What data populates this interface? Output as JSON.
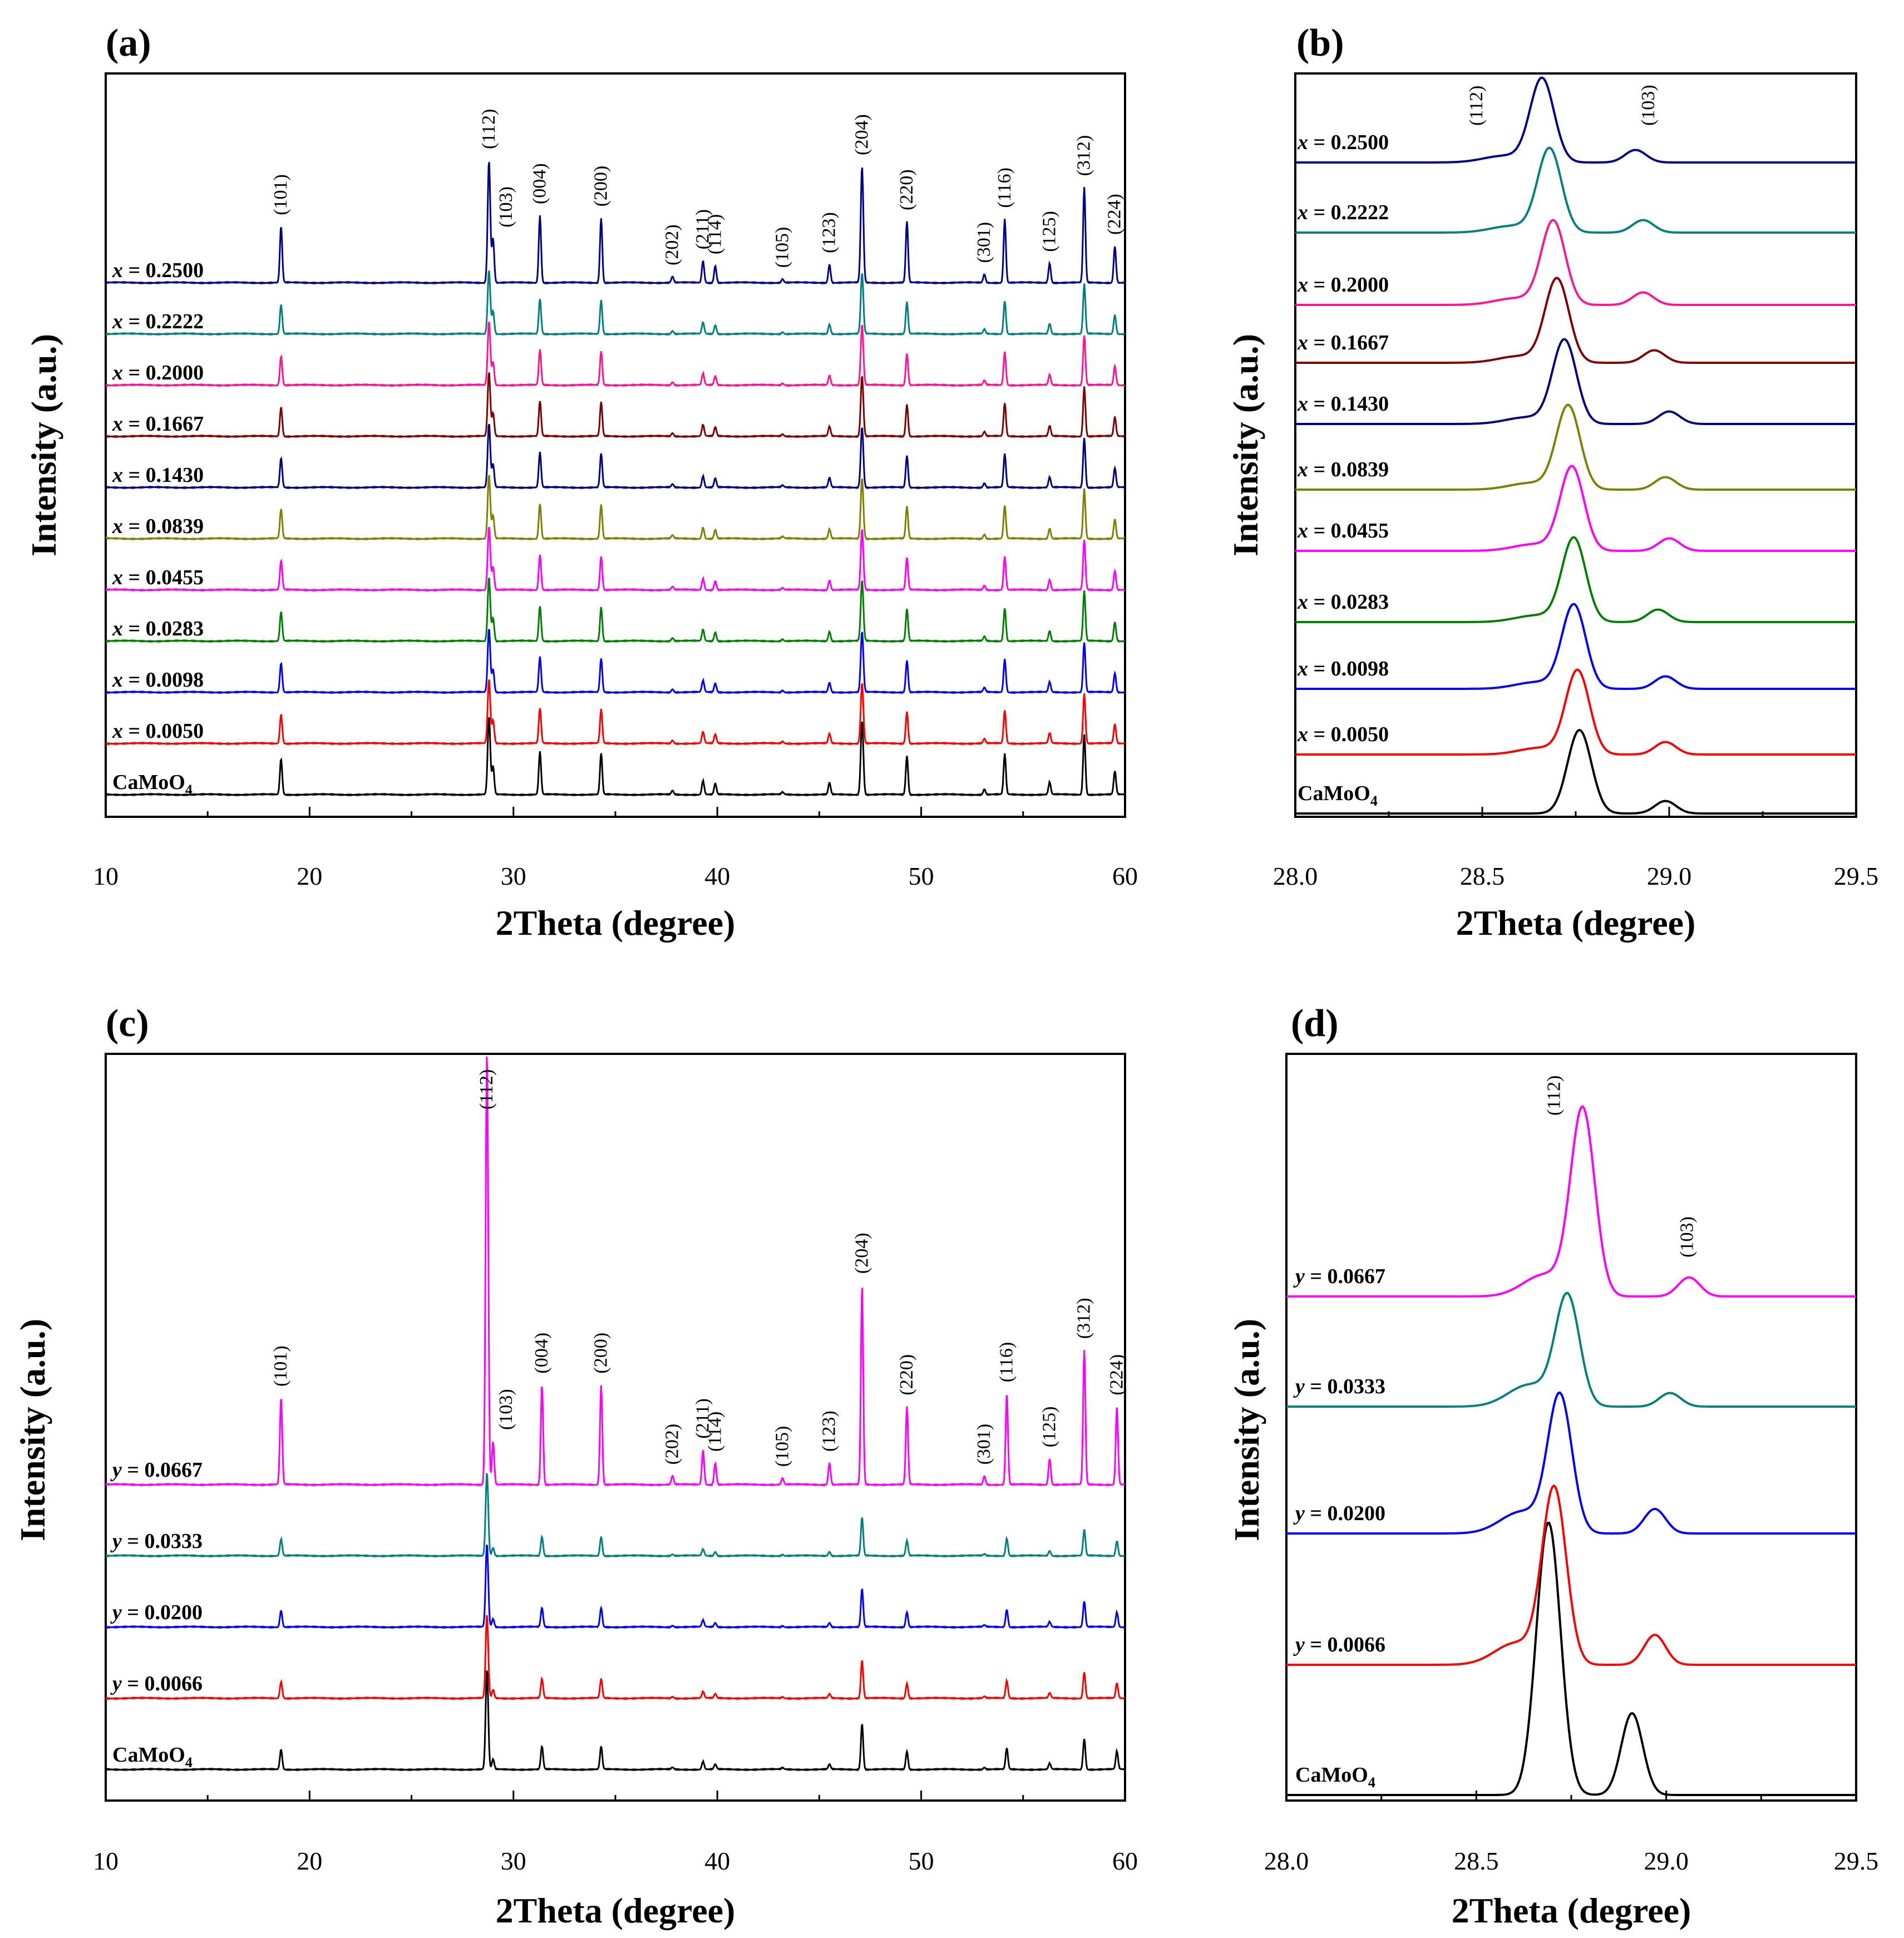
{
  "chart_data": [
    {
      "panel": "(a)",
      "type": "line",
      "xlabel": "2Theta  (degree)",
      "ylabel": "Intensity  (a.u.)",
      "xlim": [
        10,
        60
      ],
      "xticks": [
        "10",
        "20",
        "30",
        "40",
        "50",
        "60"
      ],
      "series": [
        {
          "name": "CaMoO",
          "sub": "4",
          "color": "#000000",
          "offset": 0,
          "scale": 140
        },
        {
          "name": "x = 0.0050",
          "color": "#ff0000",
          "offset": 1,
          "scale": 115
        },
        {
          "name": "x = 0.0098",
          "color": "#0000ff",
          "offset": 2,
          "scale": 115
        },
        {
          "name": "x = 0.0283",
          "color": "#008000",
          "offset": 3,
          "scale": 115
        },
        {
          "name": "x = 0.0455",
          "color": "#ff00ff",
          "offset": 4,
          "scale": 115
        },
        {
          "name": "x = 0.0839",
          "color": "#808000",
          "offset": 5,
          "scale": 115
        },
        {
          "name": "x = 0.1430",
          "color": "#000080",
          "offset": 6,
          "scale": 115
        },
        {
          "name": "x = 0.1667",
          "color": "#800000",
          "offset": 7,
          "scale": 115
        },
        {
          "name": "x = 0.2000",
          "color": "#ff1493",
          "offset": 8,
          "scale": 115
        },
        {
          "name": "x = 0.2222",
          "color": "#008080",
          "offset": 9,
          "scale": 115
        },
        {
          "name": "x = 0.2500",
          "color": "#00008b",
          "offset": 10,
          "scale": 220
        }
      ],
      "peaks": [
        {
          "x": 18.6,
          "h": 0.46,
          "hkl": "(101)"
        },
        {
          "x": 28.8,
          "h": 1.0,
          "hkl": "(112)"
        },
        {
          "x": 29.0,
          "h": 0.36,
          "hkl": "(103)"
        },
        {
          "x": 31.3,
          "h": 0.55,
          "hkl": "(004)"
        },
        {
          "x": 34.3,
          "h": 0.53,
          "hkl": "(200)"
        },
        {
          "x": 37.8,
          "h": 0.05,
          "hkl": "(202)"
        },
        {
          "x": 39.3,
          "h": 0.18,
          "hkl": "(211)"
        },
        {
          "x": 39.9,
          "h": 0.14,
          "hkl": "(114)"
        },
        {
          "x": 43.2,
          "h": 0.03,
          "hkl": "(105)"
        },
        {
          "x": 45.5,
          "h": 0.15,
          "hkl": "(123)"
        },
        {
          "x": 47.1,
          "h": 0.95,
          "hkl": "(204)"
        },
        {
          "x": 49.3,
          "h": 0.5,
          "hkl": "(220)"
        },
        {
          "x": 53.1,
          "h": 0.07,
          "hkl": "(301)"
        },
        {
          "x": 54.1,
          "h": 0.52,
          "hkl": "(116)"
        },
        {
          "x": 56.3,
          "h": 0.16,
          "hkl": "(125)"
        },
        {
          "x": 58.0,
          "h": 0.78,
          "hkl": "(312)"
        },
        {
          "x": 59.5,
          "h": 0.3,
          "hkl": "(224)"
        }
      ]
    },
    {
      "panel": "(b)",
      "type": "line",
      "xlabel": "2Theta  (degree)",
      "ylabel": "Intensity  (a.u.)",
      "xlim": [
        28.0,
        29.5
      ],
      "xticks": [
        "28.0",
        "28.5",
        "29.0",
        "29.5"
      ],
      "series": [
        {
          "name": "CaMoO",
          "sub": "4",
          "color": "#000000",
          "p112": 28.76,
          "p103": 28.99
        },
        {
          "name": "x = 0.0050",
          "color": "#ff0000",
          "p112": 28.755,
          "p103": 28.99
        },
        {
          "name": "x = 0.0098",
          "color": "#0000ff",
          "p112": 28.745,
          "p103": 28.99
        },
        {
          "name": "x = 0.0283",
          "color": "#008000",
          "p112": 28.745,
          "p103": 28.97
        },
        {
          "name": "x = 0.0455",
          "color": "#ff00ff",
          "p112": 28.74,
          "p103": 29.0
        },
        {
          "name": "x = 0.0839",
          "color": "#808000",
          "p112": 28.73,
          "p103": 28.99
        },
        {
          "name": "x = 0.1430",
          "color": "#000080",
          "p112": 28.72,
          "p103": 29.0
        },
        {
          "name": "x = 0.1667",
          "color": "#800000",
          "p112": 28.7,
          "p103": 28.96
        },
        {
          "name": "x = 0.2000",
          "color": "#ff1493",
          "p112": 28.69,
          "p103": 28.93
        },
        {
          "name": "x = 0.2222",
          "color": "#008080",
          "p112": 28.68,
          "p103": 28.93
        },
        {
          "name": "x = 0.2500",
          "color": "#00008b",
          "p112": 28.66,
          "p103": 28.91
        }
      ],
      "annotations": [
        "(112)",
        "(103)"
      ]
    },
    {
      "panel": "(c)",
      "type": "line",
      "xlabel": "2Theta  (degree)",
      "ylabel": "Intensity  (a.u.)",
      "xlim": [
        10,
        60
      ],
      "xticks": [
        "10",
        "20",
        "30",
        "40",
        "50",
        "60"
      ],
      "series": [
        {
          "name": "CaMoO",
          "sub": "4",
          "color": "#000000",
          "offset": 0,
          "scale": 180
        },
        {
          "name": "y = 0.0066",
          "color": "#ff0000",
          "offset": 1,
          "scale": 150
        },
        {
          "name": "y = 0.0200",
          "color": "#0000ff",
          "offset": 2,
          "scale": 150
        },
        {
          "name": "y = 0.0333",
          "color": "#008080",
          "offset": 3,
          "scale": 150
        },
        {
          "name": "y = 0.0667",
          "color": "#ff00ff",
          "offset": 4,
          "scale": 780
        }
      ],
      "peaks": [
        {
          "x": 18.6,
          "h": 0.2,
          "hkl": "(101)"
        },
        {
          "x": 28.7,
          "h": 1.0,
          "hkl": "(112)"
        },
        {
          "x": 29.0,
          "h": 0.1,
          "hkl": "(103)"
        },
        {
          "x": 31.4,
          "h": 0.23,
          "hkl": "(004)"
        },
        {
          "x": 34.3,
          "h": 0.23,
          "hkl": "(200)"
        },
        {
          "x": 37.8,
          "h": 0.02,
          "hkl": "(202)"
        },
        {
          "x": 39.3,
          "h": 0.08,
          "hkl": "(211)"
        },
        {
          "x": 39.9,
          "h": 0.05,
          "hkl": "(114)"
        },
        {
          "x": 43.2,
          "h": 0.015,
          "hkl": "(105)"
        },
        {
          "x": 45.5,
          "h": 0.05,
          "hkl": "(123)"
        },
        {
          "x": 47.1,
          "h": 0.46,
          "hkl": "(204)"
        },
        {
          "x": 49.3,
          "h": 0.18,
          "hkl": "(220)"
        },
        {
          "x": 53.1,
          "h": 0.02,
          "hkl": "(301)"
        },
        {
          "x": 54.2,
          "h": 0.21,
          "hkl": "(116)"
        },
        {
          "x": 56.3,
          "h": 0.06,
          "hkl": "(125)"
        },
        {
          "x": 58.0,
          "h": 0.31,
          "hkl": "(312)"
        },
        {
          "x": 59.6,
          "h": 0.18,
          "hkl": "(224)"
        }
      ]
    },
    {
      "panel": "(d)",
      "type": "line",
      "xlabel": "2Theta  (degree)",
      "ylabel": "Intensity  (a.u.)",
      "xlim": [
        28.0,
        29.5
      ],
      "xticks": [
        "28.0",
        "28.5",
        "29.0",
        "29.5"
      ],
      "series": [
        {
          "name": "CaMoO",
          "sub": "4",
          "color": "#000000",
          "p112": 28.69,
          "p103": 28.91,
          "h112": 1.0,
          "h103": 0.3
        },
        {
          "name": "y = 0.0066",
          "color": "#ff0000",
          "p112": 28.705,
          "p103": 28.97,
          "h112": 0.64,
          "h103": 0.11
        },
        {
          "name": "y = 0.0200",
          "color": "#0000ff",
          "p112": 28.72,
          "p103": 28.97,
          "h112": 0.5,
          "h103": 0.09
        },
        {
          "name": "y = 0.0333",
          "color": "#008080",
          "p112": 28.74,
          "p103": 29.01,
          "h112": 0.4,
          "h103": 0.05
        },
        {
          "name": "y = 0.0667",
          "color": "#ff00ff",
          "p112": 28.78,
          "p103": 29.06,
          "h112": 0.68,
          "h103": 0.07
        }
      ],
      "annotations": [
        "(112)",
        "(103)"
      ]
    }
  ]
}
